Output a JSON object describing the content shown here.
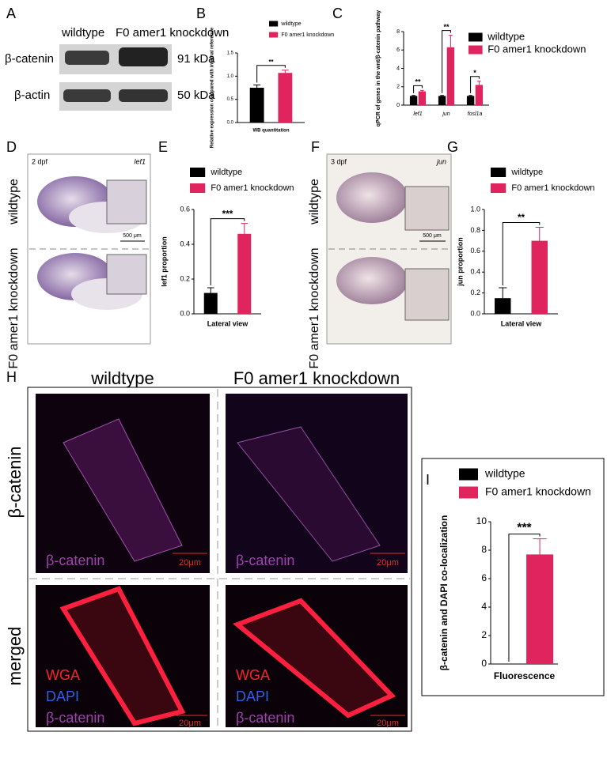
{
  "figure": {
    "panel_letters": [
      "A",
      "B",
      "C",
      "D",
      "E",
      "F",
      "G",
      "H",
      "I"
    ],
    "blot": {
      "columns": [
        "wildtype",
        "F0 amer1 knockdown"
      ],
      "rows": [
        "β-catenin",
        "β-actin"
      ],
      "sizes": [
        "91 kDa",
        "50 kDa"
      ]
    },
    "d": {
      "stage": "2 dpf",
      "gene": "lef1",
      "scale": "500 μm",
      "rows": [
        "wildtype",
        "F0 amer1 knockdown"
      ]
    },
    "f": {
      "stage": "3 dpf",
      "gene": "jun",
      "scale": "500 μm",
      "rows": [
        "wildtype",
        "F0 amer1 knockdown"
      ]
    },
    "h": {
      "columns": [
        "wildtype",
        "F0 amer1 knockdown"
      ],
      "rows": [
        "β-catenin",
        "merged"
      ],
      "top_stain": [
        "β-catenin",
        "β-catenin"
      ],
      "scale": [
        "20μm",
        "20μm",
        "20μm",
        "20μm"
      ],
      "merged_stains": [
        [
          "WGA",
          "DAPI",
          "β-catenin"
        ],
        [
          "WGA",
          "DAPI",
          "β-catenin"
        ]
      ]
    }
  },
  "chart_data": [
    {
      "type": "bar",
      "ylabel": "Relative expression compared with internal reference",
      "categories": [
        "WB quantitation"
      ],
      "series": [
        {
          "name": "wildtype",
          "color": "#000000",
          "values": [
            0.75
          ],
          "errors": [
            0.06
          ]
        },
        {
          "name": "F0 amer1 knockdown",
          "color": "#e0245e",
          "values": [
            1.07
          ],
          "errors": [
            0.06
          ]
        }
      ],
      "significance": [
        "**"
      ],
      "ylim": [
        0,
        1.5
      ],
      "yticks": [
        {
          "value": 0,
          "label": "0.0"
        },
        0.5,
        {
          "value": 1,
          "label": "1.0"
        },
        1.5
      ]
    },
    {
      "type": "bar",
      "ylabel": "qPCR of genes in the wnt/β-catenin pathway",
      "categories": [
        "lef1",
        "jun",
        "fosl1a"
      ],
      "series": [
        {
          "name": "wildtype",
          "color": "#000000",
          "values": [
            1.0,
            1.0,
            1.0
          ],
          "errors": [
            0.05,
            0.05,
            0.05
          ]
        },
        {
          "name": "F0 amer1 knockdown",
          "color": "#e0245e",
          "values": [
            1.5,
            6.3,
            2.2
          ],
          "errors": [
            0.1,
            1.3,
            0.4
          ]
        }
      ],
      "significance": [
        "**",
        "**",
        "*"
      ],
      "ylim": [
        0,
        8
      ],
      "yticks": [
        0,
        2,
        4,
        6,
        8
      ]
    },
    {
      "type": "bar",
      "ylabel": "lef1 proportion",
      "categories": [
        "Lateral view"
      ],
      "series": [
        {
          "name": "wildtype",
          "color": "#000000",
          "values": [
            0.12
          ],
          "errors": [
            0.03
          ]
        },
        {
          "name": "F0 amer1 knockdown",
          "color": "#e0245e",
          "values": [
            0.46
          ],
          "errors": [
            0.06
          ]
        }
      ],
      "significance": [
        "***"
      ],
      "ylim": [
        0,
        0.6
      ],
      "yticks": [
        {
          "value": 0,
          "label": "0.0"
        },
        0.2,
        0.4,
        0.6
      ]
    },
    {
      "type": "bar",
      "ylabel": "jun proportion",
      "categories": [
        "Lateral view"
      ],
      "series": [
        {
          "name": "wildtype",
          "color": "#000000",
          "values": [
            0.15
          ],
          "errors": [
            0.1
          ]
        },
        {
          "name": "F0 amer1 knockdown",
          "color": "#e0245e",
          "values": [
            0.7
          ],
          "errors": [
            0.13
          ]
        }
      ],
      "significance": [
        "**"
      ],
      "ylim": [
        0,
        1.0
      ],
      "yticks": [
        {
          "value": 0,
          "label": "0.0"
        },
        0.2,
        0.4,
        0.6,
        0.8,
        {
          "value": 1,
          "label": "1.0"
        }
      ]
    },
    {
      "type": "bar",
      "ylabel": "β-catenin and DAPI co-localization",
      "categories": [
        "Fluorescence"
      ],
      "series": [
        {
          "name": "wildtype",
          "color": "#000000",
          "values": [
            0
          ],
          "errors": [
            0
          ]
        },
        {
          "name": "F0 amer1 knockdown",
          "color": "#e0245e",
          "values": [
            7.7
          ],
          "errors": [
            1.1
          ]
        }
      ],
      "significance": [
        "***"
      ],
      "ylim": [
        0,
        10
      ],
      "yticks": [
        0,
        2,
        4,
        6,
        8,
        10
      ]
    }
  ]
}
